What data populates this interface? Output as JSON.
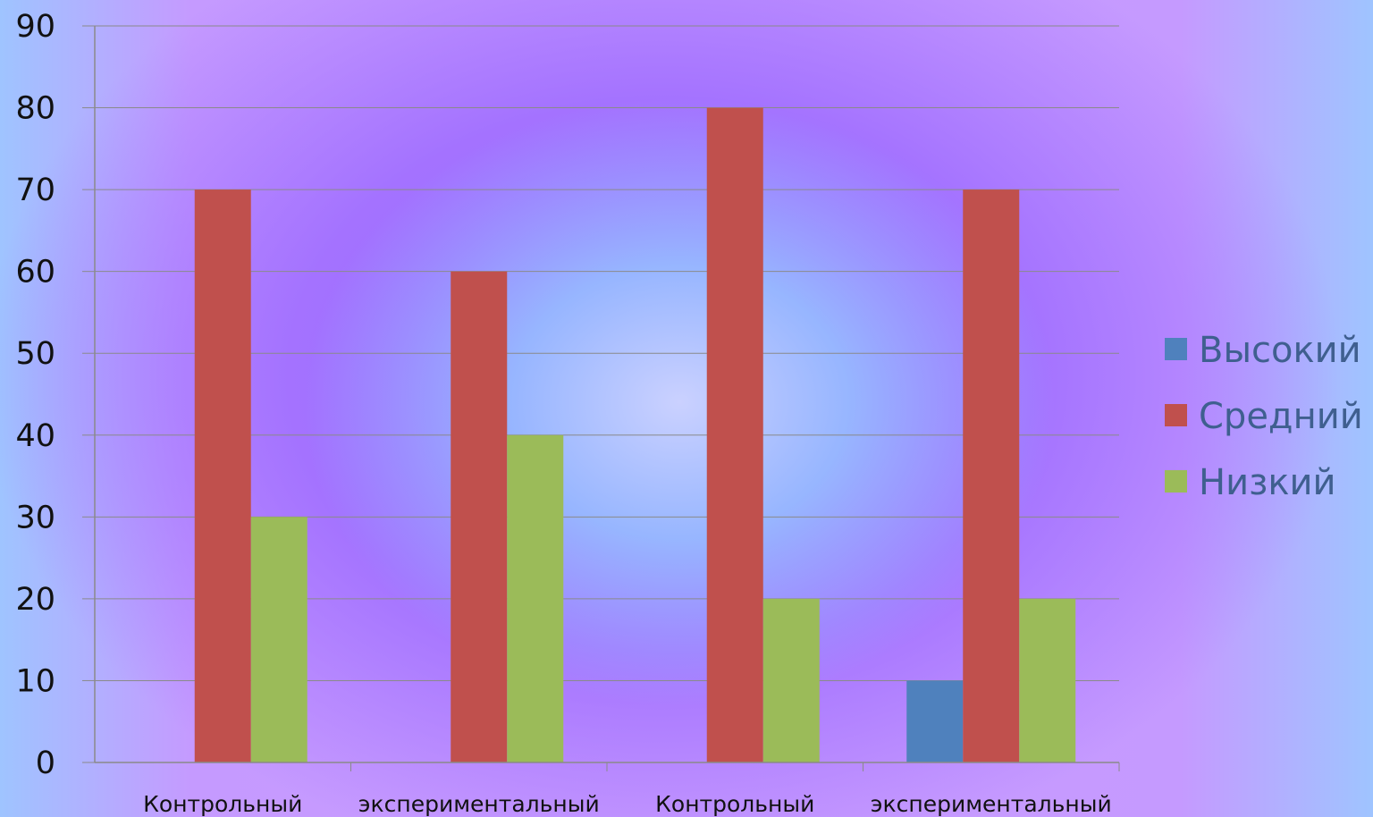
{
  "chart_data": {
    "type": "bar",
    "categories": [
      "Контрольный",
      "экспериментальный",
      "Контрольный",
      "экспериментальный"
    ],
    "series": [
      {
        "name": "Высокий",
        "color": "#4f81bd",
        "values": [
          0,
          0,
          0,
          10
        ]
      },
      {
        "name": "Средний",
        "color": "#c0504d",
        "values": [
          70,
          60,
          80,
          70
        ]
      },
      {
        "name": "Низкий",
        "color": "#9bbb59",
        "values": [
          30,
          40,
          20,
          20
        ]
      }
    ],
    "ylim": [
      0,
      90
    ],
    "yticks": [
      0,
      10,
      20,
      30,
      40,
      50,
      60,
      70,
      80,
      90
    ],
    "grid": true,
    "legend_position": "right"
  }
}
